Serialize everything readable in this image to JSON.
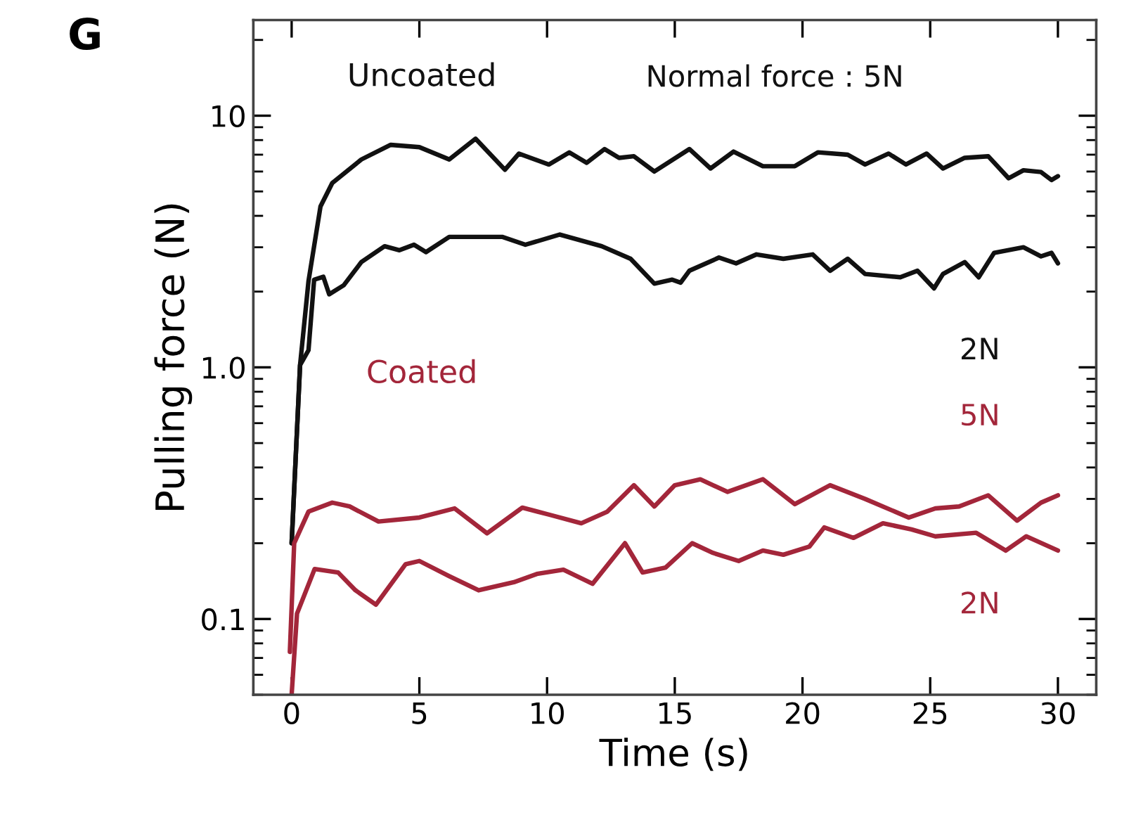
{
  "chart_data": {
    "type": "line",
    "xlabel": "Time (s)",
    "ylabel": "Pulling force (N)",
    "log": "y",
    "xlim": [
      -1.5,
      31.5
    ],
    "xticks": [
      0,
      5,
      10,
      15,
      20,
      25,
      30
    ],
    "ylim": [
      0.05,
      24
    ],
    "yticks": [
      {
        "value": 0.1,
        "label": "0.1"
      },
      {
        "value": 1,
        "label": "1.0"
      },
      10
    ],
    "grid": false,
    "legend": false,
    "marker": "none",
    "line_style": "solid",
    "series": [
      {
        "name": "Normal force : 5N",
        "color": "#111111",
        "x": [
          0,
          0.33,
          0.66,
          1.13,
          1.59,
          2.73,
          3.88,
          5.0,
          6.17,
          7.2,
          8.35,
          8.9,
          10.07,
          10.87,
          11.55,
          12.25,
          12.82,
          13.4,
          14.2,
          15.57,
          16.4,
          17.3,
          18.45,
          19.7,
          20.6,
          21.77,
          22.45,
          23.37,
          24.05,
          24.86,
          25.5,
          26.35,
          27.27,
          28.07,
          28.65,
          29.34,
          29.75,
          30.0
        ],
        "values": [
          0.2,
          1.02,
          2.2,
          4.36,
          5.4,
          6.7,
          7.66,
          7.5,
          6.7,
          8.1,
          6.1,
          7.07,
          6.4,
          7.15,
          6.5,
          7.37,
          6.8,
          6.9,
          6.0,
          7.37,
          6.17,
          7.2,
          6.3,
          6.3,
          7.15,
          7.0,
          6.4,
          7.07,
          6.4,
          7.07,
          6.17,
          6.8,
          6.9,
          5.64,
          6.07,
          5.97,
          5.55,
          5.75
        ]
      },
      {
        "name": "2N",
        "color": "#111111",
        "x": [
          0,
          0.33,
          0.66,
          0.88,
          1.24,
          1.47,
          2.04,
          2.73,
          3.64,
          4.22,
          4.79,
          5.26,
          6.17,
          8.24,
          9.15,
          10.5,
          12.14,
          13.27,
          14.2,
          14.9,
          15.23,
          15.57,
          16.73,
          17.4,
          18.2,
          19.25,
          20.4,
          21.08,
          21.77,
          22.45,
          23.83,
          24.5,
          25.15,
          25.5,
          26.35,
          26.9,
          27.5,
          28.65,
          29.34,
          29.75,
          30.0
        ],
        "values": [
          0.2,
          1.02,
          1.17,
          2.23,
          2.29,
          1.95,
          2.12,
          2.62,
          3.03,
          2.92,
          3.07,
          2.87,
          3.3,
          3.3,
          3.07,
          3.37,
          3.03,
          2.7,
          2.15,
          2.23,
          2.17,
          2.42,
          2.73,
          2.59,
          2.81,
          2.7,
          2.81,
          2.42,
          2.7,
          2.35,
          2.28,
          2.42,
          2.06,
          2.35,
          2.62,
          2.28,
          2.85,
          3.0,
          2.76,
          2.85,
          2.59
        ]
      },
      {
        "name": "5N",
        "color": "#a3263a",
        "x": [
          -0.07,
          0.1,
          0.66,
          1.59,
          2.27,
          3.4,
          5.0,
          6.38,
          7.65,
          9.03,
          10.07,
          11.34,
          12.36,
          13.4,
          14.2,
          15.0,
          16.0,
          17.06,
          18.45,
          19.7,
          21.08,
          22.45,
          24.16,
          25.2,
          26.13,
          27.27,
          28.4,
          29.34,
          30.0
        ],
        "values": [
          0.074,
          0.2,
          0.267,
          0.29,
          0.28,
          0.244,
          0.253,
          0.275,
          0.219,
          0.277,
          0.26,
          0.24,
          0.267,
          0.34,
          0.28,
          0.34,
          0.359,
          0.32,
          0.359,
          0.286,
          0.34,
          0.3,
          0.253,
          0.275,
          0.28,
          0.31,
          0.246,
          0.29,
          0.31
        ]
      },
      {
        "name": "2N",
        "color": "#a3263a",
        "x": [
          0,
          0.21,
          0.9,
          1.82,
          2.5,
          3.3,
          4.46,
          5.0,
          6.17,
          7.32,
          8.7,
          9.6,
          10.64,
          11.78,
          13.05,
          13.74,
          14.64,
          15.68,
          16.5,
          17.5,
          18.45,
          19.25,
          20.27,
          20.85,
          22.0,
          23.15,
          24.27,
          25.2,
          26.8,
          27.96,
          28.76,
          30.0
        ],
        "values": [
          0.05,
          0.105,
          0.158,
          0.153,
          0.13,
          0.114,
          0.165,
          0.17,
          0.148,
          0.13,
          0.14,
          0.151,
          0.157,
          0.138,
          0.2,
          0.153,
          0.16,
          0.2,
          0.183,
          0.17,
          0.187,
          0.18,
          0.194,
          0.231,
          0.21,
          0.24,
          0.227,
          0.213,
          0.22,
          0.187,
          0.213,
          0.187
        ]
      }
    ],
    "annotations": [
      "G",
      "Uncoated",
      "Coated"
    ]
  }
}
